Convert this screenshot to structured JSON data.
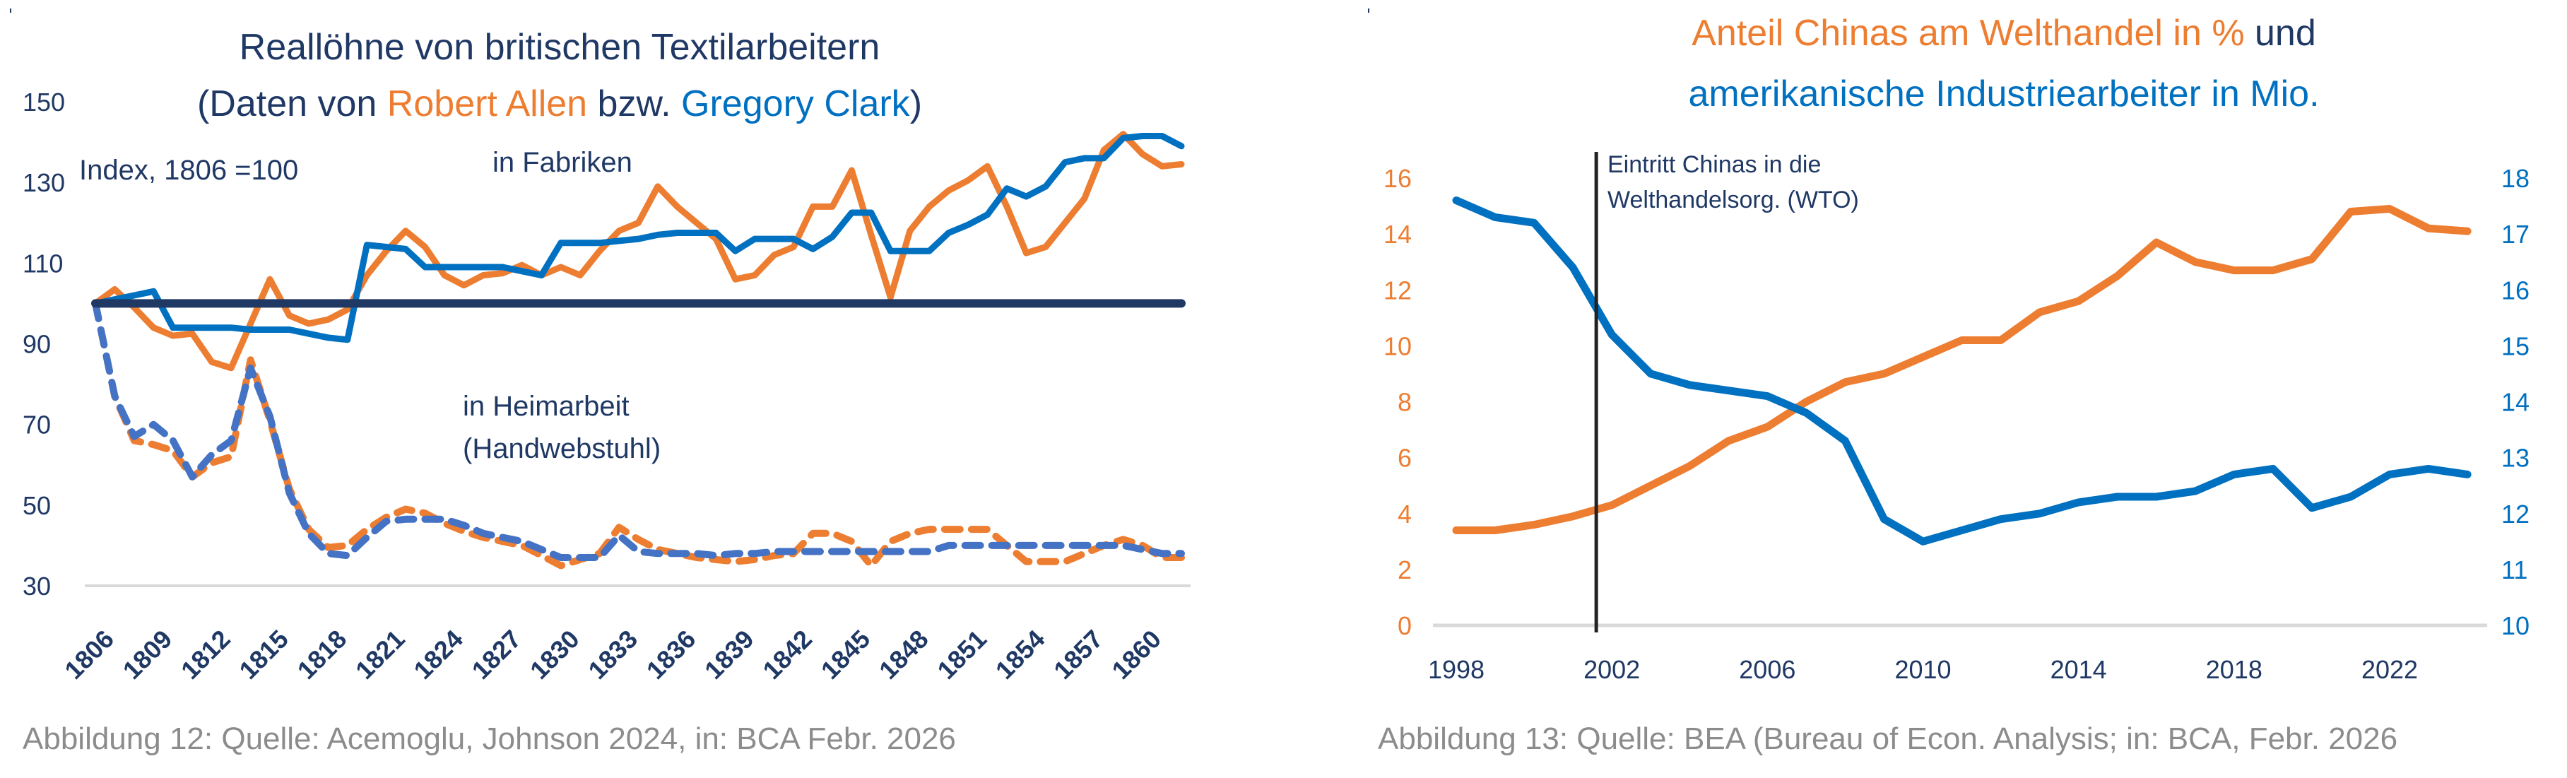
{
  "colors": {
    "navy": "#1f3864",
    "orange": "#ed7d31",
    "blue": "#0070c0",
    "blue_dashed": "#4472c4",
    "grid": "#d9d9d9",
    "caption": "#8c8c8c",
    "wto_line": "#222222"
  },
  "left_chart": {
    "title_line1": "Reallöhne von britischen Textilarbeitern",
    "title_line2_parts": [
      {
        "text": "(Daten von ",
        "color": "navy"
      },
      {
        "text": "Robert Allen",
        "color": "orange"
      },
      {
        "text": " bzw. ",
        "color": "navy"
      },
      {
        "text": "Gregory Clark",
        "color": "blue"
      },
      {
        "text": ")",
        "color": "navy"
      }
    ],
    "index_note": "Index, 1806 =100",
    "label_factory": "in Fabriken",
    "label_home_line1": "in Heimarbeit",
    "label_home_line2": "(Handwebstuhl)",
    "caption": "Abbildung 12: Quelle: Acemoglu, Johnson 2024, in: BCA Febr. 2026"
  },
  "right_chart": {
    "title_line1_orange": "Anteil Chinas am Welthandel in %",
    "title_line1_navy": " und",
    "title_line2": "amerikanische Industriearbeiter in Mio.",
    "wto_label_line1": "Eintritt Chinas in die",
    "wto_label_line2": "Welthandelsorg. (WTO)",
    "caption": "Abbildung 13: Quelle: BEA (Bureau of Econ. Analysis; in: BCA, Febr. 2026"
  },
  "chart_data": [
    {
      "type": "line",
      "title": "Reallöhne von britischen Textilarbeitern (Daten von Robert Allen bzw. Gregory Clark)",
      "ylabel": "Index, 1806 =100",
      "xlabel": "",
      "ylim": [
        30,
        150
      ],
      "yticks": [
        30,
        50,
        70,
        90,
        110,
        130,
        150
      ],
      "xlim": [
        1806,
        1862
      ],
      "xticks": [
        1806,
        1809,
        1812,
        1815,
        1818,
        1821,
        1824,
        1827,
        1830,
        1833,
        1836,
        1839,
        1842,
        1845,
        1848,
        1851,
        1854,
        1857,
        1860
      ],
      "grid": false,
      "reference_line": {
        "y": 100,
        "label": "1806 = 100"
      },
      "x_start": 1806,
      "series": [
        {
          "name": "Robert Allen – in Fabriken",
          "style": "solid",
          "color": "orange",
          "values": [
            100,
            103.5,
            99,
            94,
            92,
            92.5,
            85.5,
            84,
            95,
            106,
            97,
            95,
            96,
            98.5,
            107,
            113,
            118,
            114,
            107,
            104.5,
            107,
            107.5,
            109.5,
            107,
            109,
            107,
            113,
            118,
            120,
            129,
            124,
            120,
            116,
            106,
            107,
            112,
            114,
            124,
            124,
            133,
            117,
            101.5,
            118,
            124,
            128,
            130.5,
            134,
            124,
            112.5,
            114,
            120,
            126,
            138,
            142,
            137,
            134,
            134.5
          ]
        },
        {
          "name": "Gregory Clark – in Fabriken",
          "style": "solid",
          "color": "blue",
          "values": [
            100,
            101,
            102,
            103,
            94,
            94,
            94,
            94,
            93.5,
            93.5,
            93.5,
            92.5,
            91.5,
            91,
            114.5,
            114,
            113.5,
            109,
            109,
            109,
            109,
            109,
            108,
            107,
            115,
            115,
            115,
            115.5,
            116,
            117,
            117.5,
            117.5,
            117.5,
            113,
            116,
            116,
            116,
            113.5,
            116.5,
            122.5,
            122.5,
            113,
            113,
            113,
            117.5,
            119.5,
            122,
            128.5,
            126.5,
            129,
            135,
            136,
            136,
            141,
            141.5,
            141.5,
            139
          ]
        },
        {
          "name": "Robert Allen – in Heimarbeit (Handwebstuhl)",
          "style": "dashed",
          "color": "orange",
          "values": [
            100,
            77,
            66,
            65,
            63.5,
            57,
            60.5,
            62,
            86,
            71,
            54,
            44,
            39.5,
            40,
            44,
            47,
            49,
            48,
            45.5,
            43.5,
            42,
            41,
            40,
            37.5,
            35,
            36.5,
            38,
            44.5,
            41.5,
            39,
            38,
            37,
            36.5,
            36,
            36.5,
            37.5,
            38,
            43,
            43,
            41,
            35,
            41,
            43,
            44,
            44,
            44,
            44,
            40,
            36,
            36,
            36,
            38,
            40,
            41.5,
            40,
            37,
            37
          ]
        },
        {
          "name": "Gregory Clark – in Heimarbeit (Handwebstuhl)",
          "style": "dashed",
          "color": "blue_dashed",
          "values": [
            100,
            77,
            67,
            70,
            66,
            57,
            62.5,
            66,
            84,
            72,
            53,
            43,
            38,
            37.5,
            42,
            46,
            46.5,
            46.5,
            46.5,
            45,
            43,
            42,
            41,
            39,
            37,
            37,
            37,
            42.5,
            38.5,
            38,
            38,
            38,
            37.5,
            38,
            38,
            38.5,
            38.5,
            38.5,
            38.5,
            38.5,
            38.5,
            38.5,
            38.5,
            38.5,
            40,
            40,
            40,
            40,
            40,
            40,
            40,
            40,
            40,
            40,
            39,
            38,
            38
          ]
        }
      ],
      "annotations": [
        "in Fabriken",
        "in Heimarbeit (Handwebstuhl)",
        "Index, 1806 =100"
      ]
    },
    {
      "type": "line",
      "title": "Anteil Chinas am Welthandel in % und amerikanische Industriearbeiter in Mio.",
      "xlabel": "",
      "x": [
        1998,
        1999,
        2000,
        2001,
        2002,
        2003,
        2004,
        2005,
        2006,
        2007,
        2008,
        2009,
        2010,
        2011,
        2012,
        2013,
        2014,
        2015,
        2016,
        2017,
        2018,
        2019,
        2020,
        2021,
        2022,
        2023,
        2024
      ],
      "xticks": [
        1998,
        2002,
        2006,
        2010,
        2014,
        2018,
        2022
      ],
      "y_left": {
        "label": "Anteil Chinas am Welthandel in %",
        "ylim": [
          0,
          16
        ],
        "ticks": [
          0,
          2,
          4,
          6,
          8,
          10,
          12,
          14,
          16
        ]
      },
      "y_right": {
        "label": "amerikanische Industriearbeiter in Mio.",
        "ylim": [
          10,
          18
        ],
        "ticks": [
          10,
          11,
          12,
          13,
          14,
          15,
          16,
          17,
          18
        ]
      },
      "grid": false,
      "series": [
        {
          "name": "Anteil Chinas am Welthandel in %",
          "axis": "left",
          "color": "orange",
          "values": [
            3.4,
            3.4,
            3.6,
            3.9,
            4.3,
            5.0,
            5.7,
            6.6,
            7.1,
            8.0,
            8.7,
            9.0,
            9.6,
            10.2,
            10.2,
            11.2,
            11.6,
            12.5,
            13.7,
            13.0,
            12.7,
            12.7,
            13.1,
            14.8,
            14.9,
            14.2,
            14.1
          ]
        },
        {
          "name": "amerikanische Industriearbeiter in Mio.",
          "axis": "right",
          "color": "blue",
          "values": [
            17.6,
            17.3,
            17.2,
            16.4,
            15.2,
            14.5,
            14.3,
            14.2,
            14.1,
            13.8,
            13.3,
            11.9,
            11.5,
            11.7,
            11.9,
            12.0,
            12.2,
            12.3,
            12.3,
            12.4,
            12.7,
            12.8,
            12.1,
            12.3,
            12.7,
            12.8,
            12.7
          ]
        }
      ],
      "vertical_marker": {
        "x": 2001.6,
        "label": "Eintritt Chinas in die Welthandelsorg. (WTO)"
      }
    }
  ]
}
